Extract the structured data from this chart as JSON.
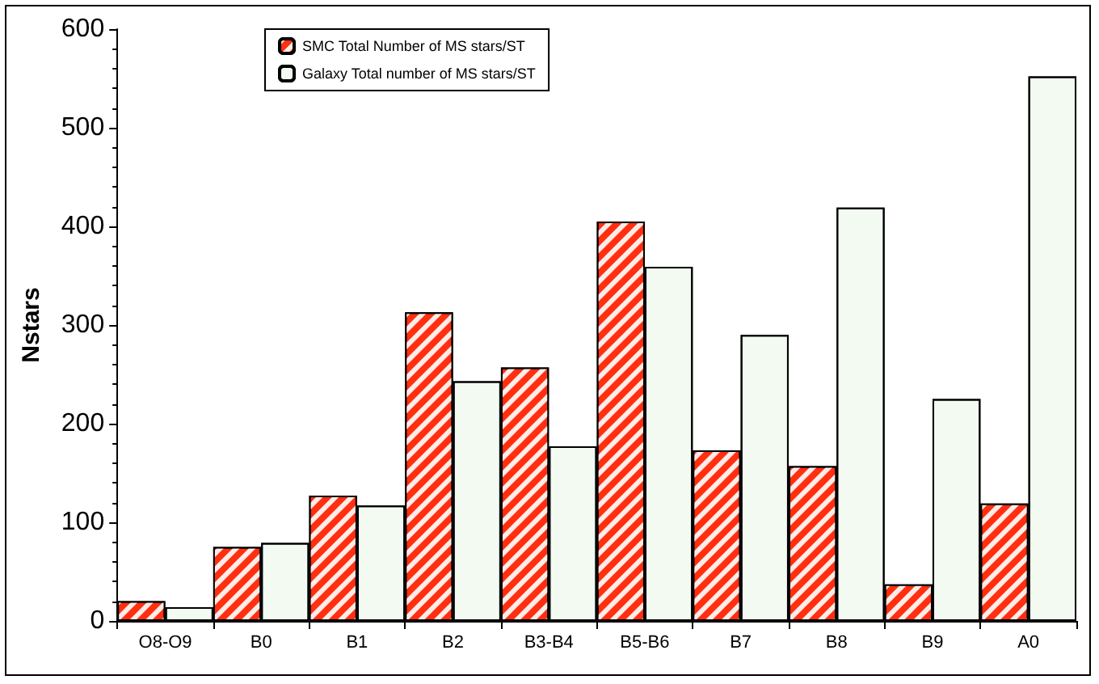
{
  "chart_data": {
    "type": "bar",
    "ylabel": "Nstars",
    "categories": [
      "O8-O9",
      "B0",
      "B1",
      "B2",
      "B3-B4",
      "B5-B6",
      "B7",
      "B8",
      "B9",
      "A0"
    ],
    "series": [
      {
        "name": "SMC Total Number of MS stars/ST",
        "color": "#ff3010",
        "values": [
          20,
          75,
          127,
          313,
          257,
          405,
          173,
          157,
          37,
          119
        ]
      },
      {
        "name": "Galaxy Total number of MS stars/ST",
        "color": "#f2faf2",
        "values": [
          14,
          79,
          117,
          243,
          177,
          359,
          290,
          419,
          225,
          552
        ]
      }
    ],
    "ylim": [
      0,
      600
    ],
    "yticks": [
      0,
      100,
      200,
      300,
      400,
      500,
      600
    ],
    "grid": false,
    "legend": "top"
  }
}
